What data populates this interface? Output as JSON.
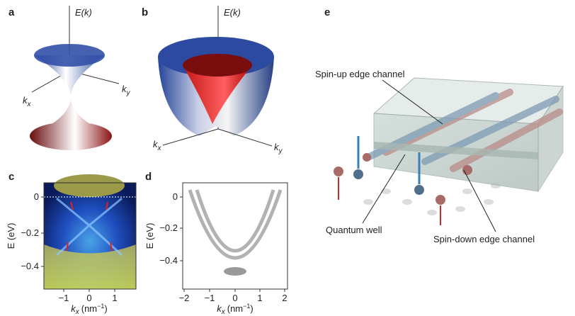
{
  "panels": [
    {
      "label": "a",
      "energy_label": "E(k)",
      "kx_label": {
        "symbol": "k",
        "subscript": "x"
      },
      "ky_label": {
        "symbol": "k",
        "subscript": "y"
      }
    },
    {
      "label": "b",
      "energy_label": "E(k)",
      "kx_label": {
        "symbol": "k",
        "subscript": "x"
      },
      "ky_label": {
        "symbol": "k",
        "subscript": "y"
      }
    },
    {
      "label": "c",
      "y_label": "E (eV)",
      "y_ticks": [
        "0",
        "−0.2",
        "−0.4"
      ],
      "x_ticks": [
        "−1",
        "0",
        "1"
      ],
      "x_label": {
        "symbol": "k",
        "subscript": "x",
        "unit": "(nm",
        "unit_exponent": "−1",
        "close": ")"
      }
    },
    {
      "label": "d",
      "y_label": "E (eV)",
      "y_ticks": [
        "0",
        "−0.2",
        "−0.4"
      ],
      "x_ticks": [
        "−2",
        "−1",
        "0",
        "1",
        "2"
      ],
      "x_label": {
        "symbol": "k",
        "subscript": "x",
        "unit": "(nm",
        "unit_exponent": "−1",
        "close": ")"
      }
    },
    {
      "label": "e",
      "callouts": [
        "Spin-up edge channel",
        "Quantum well",
        "Spin-down edge channel"
      ]
    }
  ]
}
